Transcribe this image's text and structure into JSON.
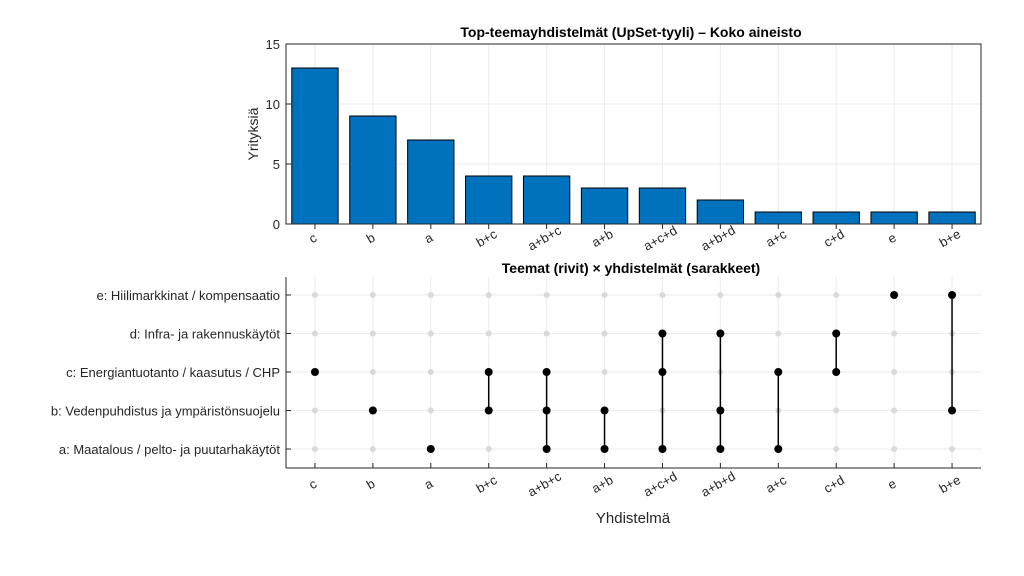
{
  "chart_data": [
    {
      "type": "bar",
      "title": "Top-teemayhdistelmät (UpSet-tyyli)  – Koko aineisto",
      "ylabel": "Yrityksiä",
      "xlabel": "",
      "ylim": [
        0,
        15
      ],
      "yticks": [
        0,
        5,
        10,
        15
      ],
      "categories": [
        "c",
        "b",
        "a",
        "b+c",
        "a+b+c",
        "a+b",
        "a+c+d",
        "a+b+d",
        "a+c",
        "c+d",
        "e",
        "b+e"
      ],
      "values": [
        13,
        9,
        7,
        4,
        4,
        3,
        3,
        2,
        1,
        1,
        1,
        1
      ],
      "bar_color": "#0072BD",
      "grid": true
    },
    {
      "type": "matrix",
      "title": "Teemat (rivit) × yhdistelmät (sarakkeet)",
      "xlabel": "Yhdistelmä",
      "rows": [
        {
          "key": "a",
          "label": "a: Maatalous / pelto- ja puutarhakäytöt"
        },
        {
          "key": "b",
          "label": "b: Vedenpuhdistus ja ympäristönsuojelu"
        },
        {
          "key": "c",
          "label": "c: Energiantuotanto / kaasutus / CHP"
        },
        {
          "key": "d",
          "label": "d: Infra- ja rakennuskäytöt"
        },
        {
          "key": "e",
          "label": "e: Hiilimarkkinat / kompensaatio"
        }
      ],
      "columns": [
        "c",
        "b",
        "a",
        "b+c",
        "a+b+c",
        "a+b",
        "a+c+d",
        "a+b+d",
        "a+c",
        "c+d",
        "e",
        "b+e"
      ],
      "active_color": "#000000",
      "inactive_color": "#d9d9d9",
      "grid": true
    }
  ]
}
